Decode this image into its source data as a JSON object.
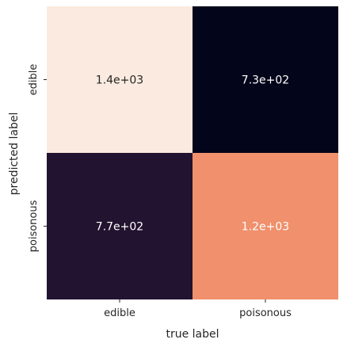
{
  "chart_data": {
    "type": "heatmap",
    "title": "",
    "xlabel": "true label",
    "ylabel": "predicted label",
    "x_categories": [
      "edible",
      "poisonous"
    ],
    "y_categories": [
      "edible",
      "poisonous"
    ],
    "values": [
      [
        1400,
        730
      ],
      [
        770,
        1200
      ]
    ],
    "annotations": [
      [
        "1.4e+03",
        "7.3e+02"
      ],
      [
        "7.7e+02",
        "1.2e+03"
      ]
    ],
    "colors": {
      "high": "#fbeadf",
      "low": "#03051a",
      "cell_1_0": "#221330",
      "cell_1_1": "#f0906c",
      "text_on_light": "#262626",
      "text_on_dark": "#ffffff"
    },
    "colorbar": false,
    "grid": false
  }
}
